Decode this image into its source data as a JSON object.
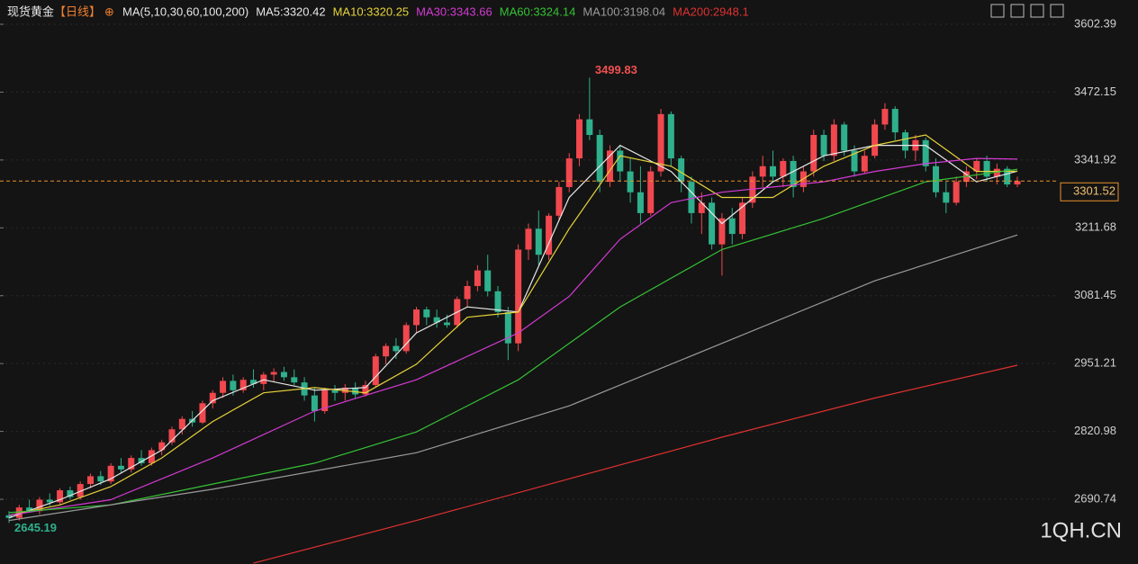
{
  "header": {
    "symbol": "现货黄金",
    "period": "【日线】",
    "ma_title": "MA(5,10,30,60,100,200)",
    "watermark": "1QH.CN"
  },
  "chart_data": {
    "type": "candlestick",
    "up_color": "#f0484e",
    "down_color": "#2fb08c",
    "grid": true,
    "ylim": [
      2566.5,
      3649.0
    ],
    "yticks": [
      2690.74,
      2820.98,
      2951.21,
      3081.45,
      3211.68,
      3341.92,
      3472.15,
      3602.39
    ],
    "values": [
      [
        2660,
        2668,
        2645.19,
        2655
      ],
      [
        2655,
        2680,
        2650,
        2675
      ],
      [
        2675,
        2690,
        2665,
        2668
      ],
      [
        2668,
        2695,
        2662,
        2690
      ],
      [
        2690,
        2702,
        2678,
        2685
      ],
      [
        2685,
        2712,
        2680,
        2708
      ],
      [
        2708,
        2715,
        2690,
        2695
      ],
      [
        2695,
        2725,
        2690,
        2720
      ],
      [
        2720,
        2740,
        2712,
        2735
      ],
      [
        2735,
        2745,
        2718,
        2725
      ],
      [
        2725,
        2760,
        2720,
        2755
      ],
      [
        2755,
        2770,
        2740,
        2748
      ],
      [
        2748,
        2775,
        2742,
        2770
      ],
      [
        2770,
        2785,
        2755,
        2760
      ],
      [
        2760,
        2790,
        2755,
        2785
      ],
      [
        2785,
        2805,
        2775,
        2800
      ],
      [
        2800,
        2830,
        2795,
        2825
      ],
      [
        2825,
        2850,
        2815,
        2845
      ],
      [
        2845,
        2860,
        2830,
        2838
      ],
      [
        2838,
        2880,
        2835,
        2875
      ],
      [
        2875,
        2900,
        2865,
        2895
      ],
      [
        2895,
        2925,
        2885,
        2918
      ],
      [
        2918,
        2930,
        2890,
        2900
      ],
      [
        2900,
        2925,
        2895,
        2920
      ],
      [
        2920,
        2940,
        2905,
        2912
      ],
      [
        2912,
        2935,
        2900,
        2930
      ],
      [
        2930,
        2942,
        2915,
        2935
      ],
      [
        2935,
        2945,
        2918,
        2925
      ],
      [
        2925,
        2940,
        2910,
        2915
      ],
      [
        2915,
        2925,
        2880,
        2890
      ],
      [
        2890,
        2905,
        2840,
        2860
      ],
      [
        2860,
        2905,
        2855,
        2900
      ],
      [
        2900,
        2910,
        2880,
        2895
      ],
      [
        2895,
        2912,
        2880,
        2905
      ],
      [
        2905,
        2915,
        2885,
        2892
      ],
      [
        2892,
        2918,
        2888,
        2910
      ],
      [
        2910,
        2970,
        2905,
        2965
      ],
      [
        2965,
        2990,
        2950,
        2985
      ],
      [
        2985,
        3000,
        2960,
        2975
      ],
      [
        2975,
        3030,
        2970,
        3025
      ],
      [
        3025,
        3060,
        3010,
        3055
      ],
      [
        3055,
        3060,
        3025,
        3040
      ],
      [
        3040,
        3055,
        3020,
        3030
      ],
      [
        3030,
        3045,
        3020,
        3025
      ],
      [
        3025,
        3080,
        3020,
        3075
      ],
      [
        3075,
        3110,
        3060,
        3100
      ],
      [
        3100,
        3140,
        3090,
        3130
      ],
      [
        3130,
        3160,
        3080,
        3090
      ],
      [
        3090,
        3100,
        3040,
        3050
      ],
      [
        3050,
        3060,
        2958,
        2990
      ],
      [
        2990,
        3180,
        2975,
        3170
      ],
      [
        3170,
        3220,
        3150,
        3210
      ],
      [
        3210,
        3245,
        3140,
        3160
      ],
      [
        3160,
        3240,
        3150,
        3235
      ],
      [
        3235,
        3300,
        3225,
        3290
      ],
      [
        3290,
        3355,
        3280,
        3345
      ],
      [
        3345,
        3430,
        3330,
        3420
      ],
      [
        3420,
        3499.83,
        3380,
        3390
      ],
      [
        3390,
        3400,
        3280,
        3300
      ],
      [
        3300,
        3370,
        3290,
        3360
      ],
      [
        3360,
        3370,
        3300,
        3320
      ],
      [
        3320,
        3345,
        3260,
        3280
      ],
      [
        3280,
        3330,
        3220,
        3240
      ],
      [
        3240,
        3330,
        3235,
        3320
      ],
      [
        3320,
        3440,
        3310,
        3430
      ],
      [
        3430,
        3435,
        3330,
        3345
      ],
      [
        3345,
        3350,
        3280,
        3300
      ],
      [
        3300,
        3310,
        3220,
        3240
      ],
      [
        3240,
        3280,
        3200,
        3260
      ],
      [
        3260,
        3270,
        3170,
        3180
      ],
      [
        3180,
        3240,
        3120,
        3230
      ],
      [
        3230,
        3250,
        3180,
        3200
      ],
      [
        3200,
        3270,
        3190,
        3260
      ],
      [
        3260,
        3320,
        3250,
        3310
      ],
      [
        3310,
        3350,
        3290,
        3330
      ],
      [
        3330,
        3360,
        3300,
        3310
      ],
      [
        3310,
        3345,
        3290,
        3340
      ],
      [
        3340,
        3350,
        3270,
        3290
      ],
      [
        3290,
        3330,
        3280,
        3320
      ],
      [
        3320,
        3400,
        3310,
        3390
      ],
      [
        3390,
        3400,
        3340,
        3350
      ],
      [
        3350,
        3420,
        3340,
        3410
      ],
      [
        3410,
        3415,
        3350,
        3360
      ],
      [
        3360,
        3370,
        3310,
        3320
      ],
      [
        3320,
        3360,
        3315,
        3350
      ],
      [
        3350,
        3420,
        3345,
        3410
      ],
      [
        3410,
        3451.14,
        3400,
        3440
      ],
      [
        3440,
        3445,
        3380,
        3395
      ],
      [
        3395,
        3400,
        3345,
        3360
      ],
      [
        3360,
        3390,
        3340,
        3380
      ],
      [
        3380,
        3385,
        3320,
        3330
      ],
      [
        3330,
        3345,
        3270,
        3280
      ],
      [
        3280,
        3300,
        3240,
        3260
      ],
      [
        3260,
        3310,
        3255,
        3300
      ],
      [
        3300,
        3330,
        3290,
        3320
      ],
      [
        3320,
        3345,
        3305,
        3340
      ],
      [
        3340,
        3350,
        3300,
        3310
      ],
      [
        3310,
        3335,
        3295,
        3325
      ],
      [
        3325,
        3330,
        3290,
        3295
      ],
      [
        3295,
        3310,
        3290,
        3301.52
      ]
    ],
    "series": [
      {
        "name": "MA5",
        "label": "MA5:3320.42",
        "color": "#e8e8e8",
        "x": [
          0,
          5,
          10,
          15,
          20,
          25,
          30,
          35,
          40,
          45,
          50,
          55,
          60,
          65,
          70,
          75,
          80,
          85,
          90,
          95,
          99
        ],
        "values": [
          2655,
          2690,
          2730,
          2785,
          2880,
          2920,
          2900,
          2905,
          3010,
          3060,
          3050,
          3270,
          3370,
          3320,
          3220,
          3300,
          3350,
          3370,
          3370,
          3300,
          3320.42
        ]
      },
      {
        "name": "MA10",
        "label": "MA10:3320.25",
        "color": "#e6d23a",
        "x": [
          0,
          5,
          10,
          15,
          20,
          25,
          30,
          35,
          40,
          45,
          50,
          55,
          60,
          65,
          70,
          75,
          80,
          85,
          90,
          95,
          99
        ],
        "values": [
          2660,
          2680,
          2715,
          2770,
          2840,
          2895,
          2905,
          2895,
          2950,
          3040,
          3050,
          3210,
          3350,
          3330,
          3270,
          3270,
          3330,
          3370,
          3390,
          3320,
          3320.25
        ]
      },
      {
        "name": "MA30",
        "label": "MA30:3343.66",
        "color": "#d43ad4",
        "x": [
          0,
          10,
          20,
          30,
          40,
          50,
          55,
          60,
          65,
          70,
          75,
          80,
          85,
          90,
          95,
          99
        ],
        "values": [
          2660,
          2690,
          2770,
          2860,
          2920,
          3010,
          3080,
          3190,
          3260,
          3280,
          3290,
          3300,
          3320,
          3335,
          3345,
          3343.66
        ]
      },
      {
        "name": "MA60",
        "label": "MA60:3324.14",
        "color": "#35c235",
        "x": [
          0,
          10,
          20,
          30,
          40,
          50,
          60,
          70,
          80,
          90,
          99
        ],
        "values": [
          2665,
          2680,
          2720,
          2760,
          2820,
          2920,
          3060,
          3170,
          3230,
          3300,
          3324.14
        ]
      },
      {
        "name": "MA100",
        "label": "MA100:3198.04",
        "color": "#9a9a9a",
        "x": [
          0,
          20,
          40,
          55,
          70,
          85,
          99
        ],
        "values": [
          2650,
          2710,
          2780,
          2870,
          2990,
          3110,
          3198.04
        ]
      },
      {
        "name": "MA200",
        "label": "MA200:2948.1",
        "color": "#e03030",
        "x": [
          24,
          40,
          55,
          70,
          85,
          99
        ],
        "values": [
          2568,
          2650,
          2730,
          2810,
          2885,
          2948.1
        ]
      }
    ]
  }
}
